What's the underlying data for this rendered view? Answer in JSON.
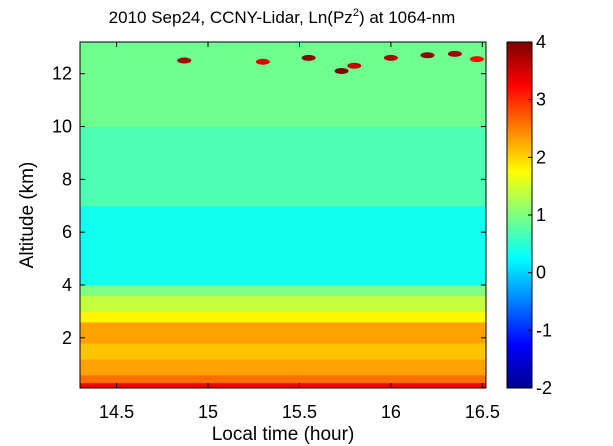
{
  "chart_data": {
    "type": "heatmap",
    "title": "2010 Sep24, CCNY-Lidar, Ln(Pz",
    "title_superscript": "2",
    "title_suffix": ") at 1064-nm",
    "xlabel": "Local time (hour)",
    "ylabel": "Altitude (km)",
    "xlim": [
      14.3,
      16.52
    ],
    "ylim": [
      0.1,
      13.2
    ],
    "xticks": [
      14.5,
      15,
      15.5,
      16,
      16.5
    ],
    "xtick_labels": [
      "14.5",
      "15",
      "15.5",
      "16",
      "16.5"
    ],
    "yticks": [
      2,
      4,
      6,
      8,
      10,
      12
    ],
    "ytick_labels": [
      "2",
      "4",
      "6",
      "8",
      "10",
      "12"
    ],
    "colorbar": {
      "range": [
        -2,
        4
      ],
      "ticks": [
        -2,
        -1,
        0,
        1,
        2,
        3,
        4
      ],
      "tick_labels": [
        "-2",
        "-1",
        "0",
        "1",
        "2",
        "3",
        "4"
      ],
      "colormap": "jet"
    },
    "layers": [
      {
        "alt_from": 0.1,
        "alt_to": 0.3,
        "value": 3.3
      },
      {
        "alt_from": 0.3,
        "alt_to": 0.6,
        "value": 2.6
      },
      {
        "alt_from": 0.6,
        "alt_to": 1.2,
        "value": 2.3
      },
      {
        "alt_from": 1.2,
        "alt_to": 1.8,
        "value": 2.1
      },
      {
        "alt_from": 1.8,
        "alt_to": 2.6,
        "value": 2.3
      },
      {
        "alt_from": 2.6,
        "alt_to": 3.0,
        "value": 1.8
      },
      {
        "alt_from": 3.0,
        "alt_to": 3.6,
        "value": 1.4
      },
      {
        "alt_from": 3.6,
        "alt_to": 4.0,
        "value": 1.0
      },
      {
        "alt_from": 4.0,
        "alt_to": 7.0,
        "value": 0.35
      },
      {
        "alt_from": 7.0,
        "alt_to": 10.0,
        "value": 0.7
      },
      {
        "alt_from": 10.0,
        "alt_to": 13.2,
        "value": 0.9
      }
    ],
    "cloud_patches": [
      {
        "t": 14.87,
        "alt": 12.5,
        "value": 3.8
      },
      {
        "t": 15.3,
        "alt": 12.45,
        "value": 3.5
      },
      {
        "t": 15.55,
        "alt": 12.6,
        "value": 3.9
      },
      {
        "t": 15.73,
        "alt": 12.1,
        "value": 4.0
      },
      {
        "t": 15.8,
        "alt": 12.3,
        "value": 3.6
      },
      {
        "t": 16.0,
        "alt": 12.6,
        "value": 3.7
      },
      {
        "t": 16.2,
        "alt": 12.7,
        "value": 3.9
      },
      {
        "t": 16.35,
        "alt": 12.75,
        "value": 3.8
      },
      {
        "t": 16.47,
        "alt": 12.55,
        "value": 3.2
      }
    ]
  }
}
